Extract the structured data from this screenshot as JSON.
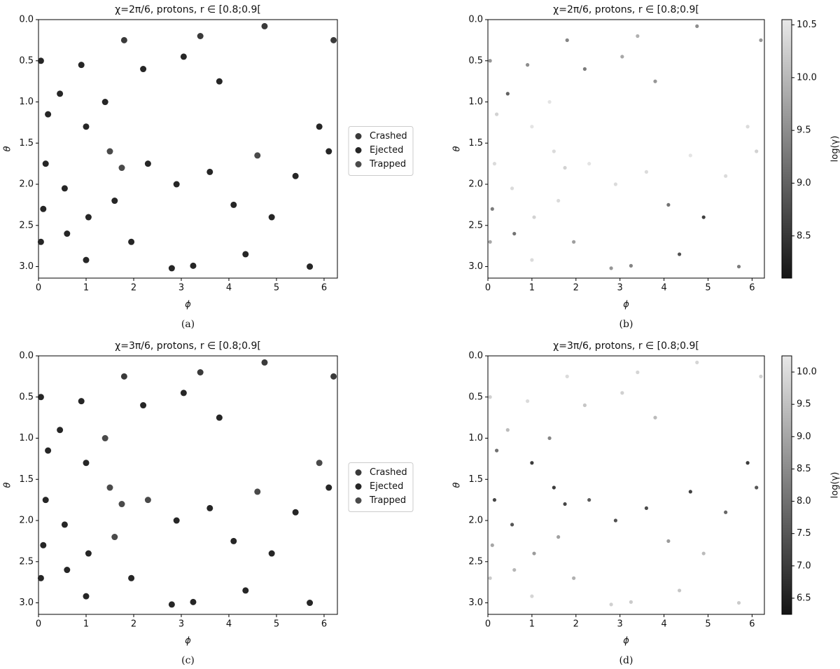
{
  "chart_data": [
    {
      "type": "scatter",
      "title": "χ=2π/6, protons, r ∈ [0.8;0.9[",
      "xlabel": "ϕ",
      "ylabel": "θ",
      "caption": "(a)",
      "xlim": [
        0,
        6.28
      ],
      "ylim": [
        3.14,
        0
      ],
      "xticks": [
        0,
        1,
        2,
        3,
        4,
        5,
        6
      ],
      "yticks": [
        {
          "value": 0,
          "label": "0.0"
        },
        0.5,
        {
          "value": 1,
          "label": "1.0"
        },
        1.5,
        {
          "value": 2,
          "label": "2.0"
        },
        2.5,
        {
          "value": 3,
          "label": "3.0"
        }
      ],
      "legend": "right",
      "series": [
        {
          "name": "Crashed",
          "color": "#3a3a3a",
          "x": [
            1.8,
            3.4,
            4.75,
            6.2
          ],
          "values": [
            0.25,
            0.2,
            0.08,
            0.25
          ]
        },
        {
          "name": "Ejected",
          "color": "#262626",
          "x": [
            0.05,
            0.2,
            0.15,
            0.1,
            0.05,
            0.45,
            0.55,
            0.6,
            0.9,
            1.0,
            1.05,
            1.0,
            1.4,
            1.6,
            1.95,
            2.2,
            2.3,
            2.8,
            2.9,
            3.05,
            3.25,
            3.6,
            3.8,
            4.1,
            4.35,
            4.9,
            5.4,
            5.7,
            5.9,
            6.1
          ],
          "values": [
            0.5,
            1.15,
            1.75,
            2.3,
            2.7,
            0.9,
            2.05,
            2.6,
            0.55,
            1.3,
            2.4,
            2.92,
            1.0,
            2.2,
            2.7,
            0.6,
            1.75,
            3.02,
            2.0,
            0.45,
            2.99,
            1.85,
            0.75,
            2.25,
            2.85,
            2.4,
            1.9,
            3.0,
            1.3,
            1.6
          ]
        },
        {
          "name": "Trapped",
          "color": "#4a4a4a",
          "x": [
            1.5,
            1.75,
            4.6
          ],
          "values": [
            1.6,
            1.8,
            1.65
          ]
        }
      ]
    },
    {
      "type": "colorscatter",
      "title": "χ=2π/6, protons, r ∈ [0.8;0.9[",
      "xlabel": "ϕ",
      "ylabel": "θ",
      "caption": "(b)",
      "xlim": [
        0,
        6.28
      ],
      "ylim": [
        3.14,
        0
      ],
      "xticks": [
        0,
        1,
        2,
        3,
        4,
        5,
        6
      ],
      "yticks": [
        {
          "value": 0,
          "label": "0.0"
        },
        0.5,
        {
          "value": 1,
          "label": "1.0"
        },
        1.5,
        {
          "value": 2,
          "label": "2.0"
        },
        2.5,
        {
          "value": 3,
          "label": "3.0"
        }
      ],
      "x": [
        0.05,
        0.2,
        0.15,
        0.1,
        0.05,
        0.45,
        0.55,
        0.6,
        0.9,
        1.0,
        1.05,
        1.0,
        1.4,
        1.5,
        1.6,
        1.8,
        1.75,
        1.95,
        2.2,
        2.3,
        2.8,
        2.9,
        3.05,
        3.25,
        3.4,
        3.6,
        3.8,
        4.1,
        4.35,
        4.6,
        4.75,
        4.9,
        5.4,
        5.7,
        5.9,
        6.2,
        6.1
      ],
      "values": [
        0.5,
        1.15,
        1.75,
        2.3,
        2.7,
        0.9,
        2.05,
        2.6,
        0.55,
        1.3,
        2.4,
        2.92,
        1.0,
        1.6,
        2.2,
        0.25,
        1.8,
        2.7,
        0.6,
        1.75,
        3.02,
        2.0,
        0.45,
        2.99,
        0.2,
        1.85,
        0.75,
        2.25,
        2.85,
        1.65,
        0.08,
        2.4,
        1.9,
        3.0,
        1.3,
        0.25,
        1.6
      ],
      "c": [
        9.6,
        10.3,
        10.4,
        9.3,
        9.8,
        9.0,
        10.4,
        9.2,
        9.5,
        10.5,
        10.3,
        10.4,
        10.5,
        10.4,
        10.4,
        9.4,
        10.3,
        9.7,
        9.3,
        10.5,
        9.6,
        10.4,
        9.8,
        9.4,
        9.9,
        10.4,
        9.6,
        9.2,
        8.8,
        10.5,
        9.5,
        8.6,
        10.4,
        9.3,
        10.4,
        9.6,
        10.3
      ],
      "colormap": "gray",
      "colorbar": {
        "label": "log(γ)",
        "lim": [
          8.1,
          10.55
        ],
        "ticks": [
          8.5,
          {
            "value": 9,
            "label": "9.0"
          },
          9.5,
          {
            "value": 10,
            "label": "10.0"
          },
          10.5
        ]
      }
    },
    {
      "type": "scatter",
      "title": "χ=3π/6, protons, r ∈ [0.8;0.9[",
      "xlabel": "ϕ",
      "ylabel": "θ",
      "caption": "(c)",
      "xlim": [
        0,
        6.28
      ],
      "ylim": [
        3.14,
        0
      ],
      "xticks": [
        0,
        1,
        2,
        3,
        4,
        5,
        6
      ],
      "yticks": [
        {
          "value": 0,
          "label": "0.0"
        },
        0.5,
        {
          "value": 1,
          "label": "1.0"
        },
        1.5,
        {
          "value": 2,
          "label": "2.0"
        },
        2.5,
        {
          "value": 3,
          "label": "3.0"
        }
      ],
      "legend": "right",
      "series": [
        {
          "name": "Crashed",
          "color": "#3a3a3a",
          "x": [
            1.8,
            3.4,
            4.75,
            6.2
          ],
          "values": [
            0.25,
            0.2,
            0.08,
            0.25
          ]
        },
        {
          "name": "Ejected",
          "color": "#262626",
          "x": [
            0.05,
            0.2,
            0.15,
            0.1,
            0.05,
            0.45,
            0.55,
            0.6,
            0.9,
            1.0,
            1.05,
            1.0,
            1.95,
            2.2,
            2.8,
            2.9,
            3.05,
            3.25,
            3.6,
            3.8,
            4.1,
            4.35,
            4.9,
            5.4,
            5.7,
            6.1
          ],
          "values": [
            0.5,
            1.15,
            1.75,
            2.3,
            2.7,
            0.9,
            2.05,
            2.6,
            0.55,
            1.3,
            2.4,
            2.92,
            2.7,
            0.6,
            3.02,
            2.0,
            0.45,
            2.99,
            1.85,
            0.75,
            2.25,
            2.85,
            2.4,
            1.9,
            3.0,
            1.6
          ]
        },
        {
          "name": "Trapped",
          "color": "#4a4a4a",
          "x": [
            1.5,
            1.75,
            4.6,
            1.4,
            2.3,
            5.9,
            1.6
          ],
          "values": [
            1.6,
            1.8,
            1.65,
            1.0,
            1.75,
            1.3,
            2.2
          ]
        }
      ]
    },
    {
      "type": "colorscatter",
      "title": "χ=3π/6, protons, r ∈ [0.8;0.9[",
      "xlabel": "ϕ",
      "ylabel": "θ",
      "caption": "(d)",
      "xlim": [
        0,
        6.28
      ],
      "ylim": [
        3.14,
        0
      ],
      "xticks": [
        0,
        1,
        2,
        3,
        4,
        5,
        6
      ],
      "yticks": [
        {
          "value": 0,
          "label": "0.0"
        },
        0.5,
        {
          "value": 1,
          "label": "1.0"
        },
        1.5,
        {
          "value": 2,
          "label": "2.0"
        },
        2.5,
        {
          "value": 3,
          "label": "3.0"
        }
      ],
      "x": [
        0.05,
        0.2,
        0.15,
        0.1,
        0.05,
        0.45,
        0.55,
        0.6,
        0.9,
        1.0,
        1.05,
        1.0,
        1.4,
        1.5,
        1.6,
        1.8,
        1.75,
        1.95,
        2.2,
        2.3,
        2.8,
        2.9,
        3.05,
        3.25,
        3.4,
        3.6,
        3.8,
        4.1,
        4.35,
        4.6,
        4.75,
        4.9,
        5.4,
        5.7,
        5.9,
        6.2,
        6.1
      ],
      "values": [
        0.5,
        1.15,
        1.75,
        2.3,
        2.7,
        0.9,
        2.05,
        2.6,
        0.55,
        1.3,
        2.4,
        2.92,
        1.0,
        1.6,
        2.2,
        0.25,
        1.8,
        2.7,
        0.6,
        1.75,
        3.02,
        2.0,
        0.45,
        2.99,
        0.2,
        1.85,
        0.75,
        2.25,
        2.85,
        1.65,
        0.08,
        2.4,
        1.9,
        3.0,
        1.3,
        0.25,
        1.6
      ],
      "c": [
        9.8,
        8.0,
        7.2,
        9.0,
        9.7,
        9.4,
        7.5,
        9.3,
        10.0,
        7.0,
        8.8,
        9.9,
        8.4,
        7.0,
        8.9,
        10.0,
        7.2,
        9.2,
        9.6,
        7.6,
        9.8,
        7.4,
        9.8,
        9.7,
        9.9,
        7.3,
        9.4,
        8.8,
        9.6,
        7.1,
        9.9,
        9.4,
        7.8,
        9.7,
        7.0,
        9.8,
        7.5
      ],
      "colormap": "gray",
      "colorbar": {
        "label": "log(γ)",
        "lim": [
          6.25,
          10.25
        ],
        "ticks": [
          6.5,
          {
            "value": 7,
            "label": "7.0"
          },
          7.5,
          {
            "value": 8,
            "label": "8.0"
          },
          8.5,
          {
            "value": 9,
            "label": "9.0"
          },
          9.5,
          {
            "value": 10,
            "label": "10.0"
          }
        ]
      }
    }
  ]
}
